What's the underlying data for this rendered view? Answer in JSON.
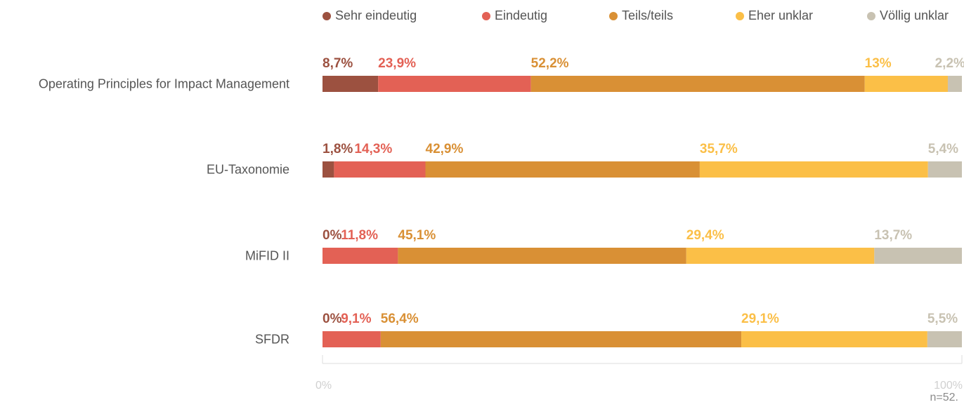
{
  "chart_data": {
    "type": "bar",
    "orientation": "horizontal",
    "stacked": true,
    "percent_stacked": true,
    "categories": [
      "Operating Principles for Impact Management",
      "EU-Taxonomie",
      "MiFID II",
      "SFDR"
    ],
    "series": [
      {
        "name": "Sehr eindeutig",
        "color": "#9c5140",
        "values": [
          8.7,
          1.8,
          0,
          0
        ],
        "labels": [
          "8,7%",
          "1,8%",
          "0%",
          "0%"
        ]
      },
      {
        "name": "Eindeutig",
        "color": "#e36155",
        "values": [
          23.9,
          14.3,
          11.8,
          9.1
        ],
        "labels": [
          "23,9%",
          "14,3%",
          "11,8%",
          "9,1%"
        ]
      },
      {
        "name": "Teils/teils",
        "color": "#d99035",
        "values": [
          52.2,
          42.9,
          45.1,
          56.4
        ],
        "labels": [
          "52,2%",
          "42,9%",
          "45,1%",
          "56,4%"
        ]
      },
      {
        "name": "Eher unklar",
        "color": "#fbbf47",
        "values": [
          13,
          35.7,
          29.4,
          29.1
        ],
        "labels": [
          "13%",
          "35,7%",
          "29,4%",
          "29,1%"
        ]
      },
      {
        "name": "Völlig unklar",
        "color": "#c8c2b2",
        "values": [
          2.2,
          5.4,
          13.7,
          5.5
        ],
        "labels": [
          "2,2%",
          "5,4%",
          "13,7%",
          "5,5%"
        ]
      }
    ],
    "xlim": [
      0,
      100
    ],
    "x_tick_labels": [
      "0%",
      "100%"
    ],
    "legend_position": "top",
    "grid": false,
    "note": "n=52."
  }
}
